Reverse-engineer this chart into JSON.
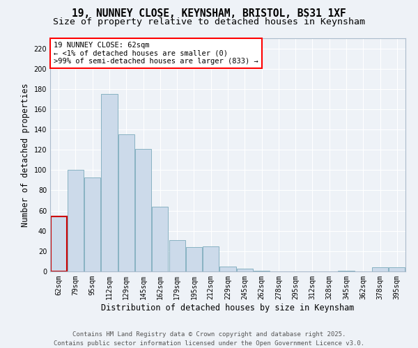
{
  "title_line1": "19, NUNNEY CLOSE, KEYNSHAM, BRISTOL, BS31 1XF",
  "title_line2": "Size of property relative to detached houses in Keynsham",
  "xlabel": "Distribution of detached houses by size in Keynsham",
  "ylabel": "Number of detached properties",
  "categories": [
    "62sqm",
    "79sqm",
    "95sqm",
    "112sqm",
    "129sqm",
    "145sqm",
    "162sqm",
    "179sqm",
    "195sqm",
    "212sqm",
    "229sqm",
    "245sqm",
    "262sqm",
    "278sqm",
    "295sqm",
    "312sqm",
    "328sqm",
    "345sqm",
    "362sqm",
    "378sqm",
    "395sqm"
  ],
  "values": [
    54,
    100,
    93,
    175,
    135,
    121,
    64,
    31,
    24,
    25,
    5,
    3,
    1,
    0,
    0,
    0,
    0,
    1,
    0,
    4,
    4
  ],
  "bar_color": "#ccdaea",
  "bar_edge_color": "#7aaabb",
  "highlight_bar_index": 0,
  "highlight_bar_edge_color": "#cc0000",
  "annotation_line1": "19 NUNNEY CLOSE: 62sqm",
  "annotation_line2": "← <1% of detached houses are smaller (0)",
  "annotation_line3": ">99% of semi-detached houses are larger (833) →",
  "ylim": [
    0,
    230
  ],
  "yticks": [
    0,
    20,
    40,
    60,
    80,
    100,
    120,
    140,
    160,
    180,
    200,
    220
  ],
  "bg_color": "#eef2f7",
  "plot_bg_color": "#eef2f7",
  "footer_line1": "Contains HM Land Registry data © Crown copyright and database right 2025.",
  "footer_line2": "Contains public sector information licensed under the Open Government Licence v3.0.",
  "title_fontsize": 10.5,
  "subtitle_fontsize": 9.5,
  "axis_label_fontsize": 8.5,
  "tick_fontsize": 7,
  "annotation_fontsize": 7.5,
  "footer_fontsize": 6.5
}
